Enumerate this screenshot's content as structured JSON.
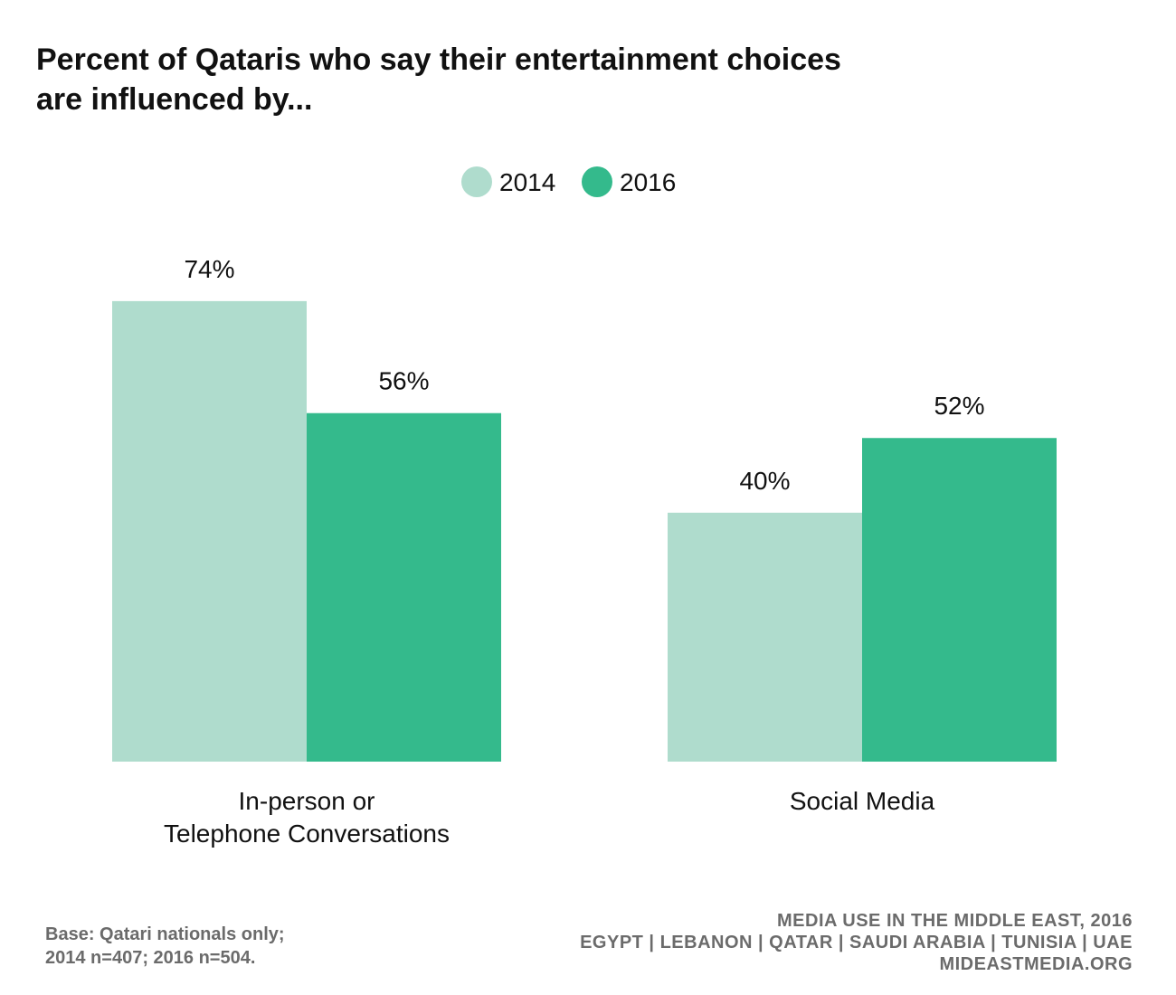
{
  "chart_data": {
    "type": "bar",
    "title": "Percent of Qataris who say their entertainment choices are influenced by...",
    "title_lines": [
      "Percent of Qataris who say their entertainment choices",
      "are influenced by..."
    ],
    "categories": [
      [
        "In-person or",
        "Telephone Conversations"
      ],
      [
        "Social Media"
      ]
    ],
    "series": [
      {
        "name": "2014",
        "values": [
          74,
          40
        ],
        "labels": [
          "74%",
          "40%"
        ],
        "color": "#afdccd"
      },
      {
        "name": "2016",
        "values": [
          56,
          52
        ],
        "labels": [
          "56%",
          "52%"
        ],
        "color": "#34ba8c"
      }
    ],
    "ylim": [
      0,
      100
    ],
    "unit": "%",
    "grid": false,
    "legend_placement": "top-center"
  },
  "footer": {
    "base_key": "Base:",
    "base_text_line1": "Qatari nationals only;",
    "base_text_line2": "2014 n=407; 2016 n=504.",
    "source_lines": [
      "MEDIA USE IN THE MIDDLE EAST, 2016",
      "EGYPT | LEBANON | QATAR | SAUDI ARABIA | TUNISIA | UAE",
      "MIDEASTMEDIA.ORG"
    ]
  }
}
